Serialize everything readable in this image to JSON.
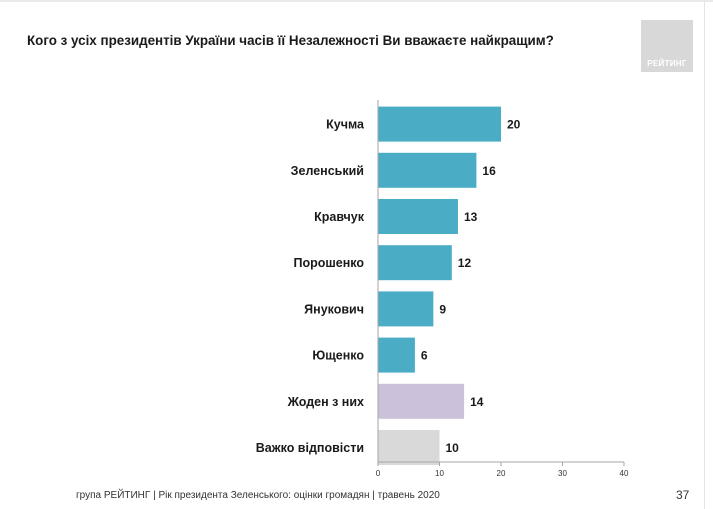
{
  "header": {
    "title": "Кого з усіх президентів України часів її Незалежності Ви вважаєте найкращим?",
    "logo_text": "РЕЙТИНГ"
  },
  "footer": {
    "text": "група РЕЙТИНГ |  Рік президента Зеленського: оцінки громадян | травень 2020",
    "page_number": "37"
  },
  "colors": {
    "main_bar": "#4bacc6",
    "none_bar": "#ccc1da",
    "hard_bar": "#d9d9d9",
    "axis": "#a6a6a6"
  },
  "chart_data": {
    "type": "bar",
    "orientation": "horizontal",
    "categories": [
      "Кучма",
      "Зеленський",
      "Кравчук",
      "Порошенко",
      "Янукович",
      "Ющенко",
      "Жоден з них",
      "Важко відповісти"
    ],
    "values": [
      20,
      16,
      13,
      12,
      9,
      6,
      14,
      10
    ],
    "bar_colors": [
      "#4bacc6",
      "#4bacc6",
      "#4bacc6",
      "#4bacc6",
      "#4bacc6",
      "#4bacc6",
      "#ccc1da",
      "#d9d9d9"
    ],
    "xlim": [
      0,
      40
    ],
    "x_ticks": [
      "0",
      "10",
      "20",
      "30",
      "40"
    ],
    "grid": false,
    "legend": "none"
  }
}
